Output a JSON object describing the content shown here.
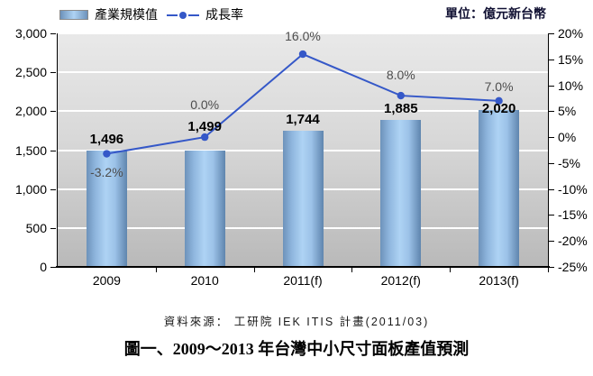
{
  "legend": {
    "items": [
      {
        "label": "產業規模值",
        "marker": "bar-swatch"
      },
      {
        "label": "成長率",
        "marker": "line-dot-swatch"
      }
    ]
  },
  "unit_label": "單位：億元新台幣",
  "source_note": "資料來源： 工研院 IEK ITIS 計畫(2011/03)",
  "caption": "圖一、2009～2013 年台灣中小尺寸面板產值預測",
  "colors": {
    "bar_edge": "#6d92ba",
    "bar_center": "#aed3f4",
    "line": "#3558c8",
    "plot_bg_top": "#e9e9e9",
    "plot_bg_bottom": "#b9b9b9",
    "gridline": "#ffffff",
    "growth_label_text": "#4d4d4d"
  },
  "chart_data": {
    "type": "bar",
    "subtype": "bar+line combo, secondary percentage axis",
    "categories": [
      "2009",
      "2010",
      "2011(f)",
      "2012(f)",
      "2013(f)"
    ],
    "series": [
      {
        "name": "產業規模值",
        "type": "bar",
        "axis": "left",
        "values": [
          1496,
          1499,
          1744,
          1885,
          2020
        ],
        "labels": [
          "1,496",
          "1,499",
          "1,744",
          "1,885",
          "2,020"
        ]
      },
      {
        "name": "成長率",
        "type": "line",
        "axis": "right",
        "values": [
          -3.2,
          0.0,
          16.0,
          8.0,
          7.0
        ],
        "labels": [
          "-3.2%",
          "0.0%",
          "16.0%",
          "8.0%",
          "7.0%"
        ]
      }
    ],
    "left_axis": {
      "min": 0,
      "max": 3000,
      "step": 500,
      "ticks": [
        "3,000",
        "2,500",
        "2,000",
        "1,500",
        "1,000",
        "500",
        "0"
      ]
    },
    "right_axis": {
      "min": -25,
      "max": 20,
      "step": 5,
      "ticks": [
        "20%",
        "15%",
        "10%",
        "5%",
        "0%",
        "-5%",
        "-10%",
        "-15%",
        "-20%",
        "-25%"
      ]
    },
    "grid": true,
    "legend_position": "top-left",
    "title": "圖一、2009～2013 年台灣中小尺寸面板產值預測"
  }
}
